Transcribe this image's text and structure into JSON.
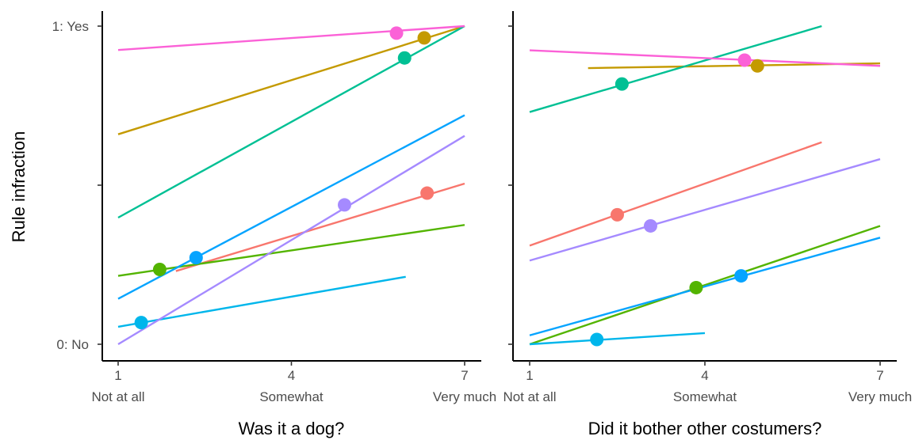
{
  "chart_data": [
    {
      "type": "line",
      "title": "",
      "xlabel": "Was it a dog?",
      "ylabel": "Rule infraction",
      "xlim": [
        1,
        7
      ],
      "ylim": [
        0,
        1
      ],
      "x_ticks": [
        1,
        4,
        7
      ],
      "x_tick_text": [
        "Not at all",
        "Somewhat",
        "Very much"
      ],
      "y_ticks": [
        0,
        0.5,
        1
      ],
      "y_tick_text": [
        "0: No",
        "",
        "1: Yes"
      ],
      "series": [
        {
          "color": "#F8766D",
          "line": {
            "x": [
              2.0,
              7.0
            ],
            "y": [
              0.23,
              0.505
            ]
          },
          "point": {
            "x": 6.35,
            "y": 0.475
          }
        },
        {
          "color": "#C49A00",
          "line": {
            "x": [
              1.0,
              7.0
            ],
            "y": [
              0.66,
              1.0
            ]
          },
          "point": {
            "x": 6.3,
            "y": 0.963
          }
        },
        {
          "color": "#53B400",
          "line": {
            "x": [
              1.0,
              7.0
            ],
            "y": [
              0.215,
              0.375
            ]
          },
          "point": {
            "x": 1.72,
            "y": 0.235
          }
        },
        {
          "color": "#00C094",
          "line": {
            "x": [
              1.0,
              7.0
            ],
            "y": [
              0.398,
              1.0
            ]
          },
          "point": {
            "x": 5.96,
            "y": 0.9
          }
        },
        {
          "color": "#00B6EB",
          "line": {
            "x": [
              1.0,
              5.98
            ],
            "y": [
              0.055,
              0.212
            ]
          },
          "point": {
            "x": 1.4,
            "y": 0.068
          }
        },
        {
          "color": "#06A4FF",
          "line": {
            "x": [
              1.0,
              7.0
            ],
            "y": [
              0.143,
              0.72
            ]
          },
          "point": {
            "x": 2.35,
            "y": 0.272
          }
        },
        {
          "color": "#A58AFF",
          "line": {
            "x": [
              1.0,
              7.0
            ],
            "y": [
              0.0,
              0.655
            ]
          },
          "point": {
            "x": 4.92,
            "y": 0.438
          }
        },
        {
          "color": "#FB61D7",
          "line": {
            "x": [
              1.0,
              7.0
            ],
            "y": [
              0.925,
              1.0
            ]
          },
          "point": {
            "x": 5.82,
            "y": 0.978
          }
        }
      ]
    },
    {
      "type": "line",
      "title": "",
      "xlabel": "Did it bother other costumers?",
      "ylabel": "",
      "xlim": [
        1,
        7
      ],
      "ylim": [
        0,
        1
      ],
      "x_ticks": [
        1,
        4,
        7
      ],
      "x_tick_text": [
        "Not at all",
        "Somewhat",
        "Very much"
      ],
      "y_ticks": [
        0,
        0.5,
        1
      ],
      "y_tick_text": [
        "",
        "",
        ""
      ],
      "series": [
        {
          "color": "#F8766D",
          "line": {
            "x": [
              1.0,
              6.0
            ],
            "y": [
              0.31,
              0.635
            ]
          },
          "point": {
            "x": 2.5,
            "y": 0.407
          }
        },
        {
          "color": "#C49A00",
          "line": {
            "x": [
              2.0,
              7.0
            ],
            "y": [
              0.868,
              0.883
            ]
          },
          "point": {
            "x": 4.9,
            "y": 0.875
          }
        },
        {
          "color": "#53B400",
          "line": {
            "x": [
              1.0,
              7.0
            ],
            "y": [
              0.0,
              0.372
            ]
          },
          "point": {
            "x": 3.85,
            "y": 0.178
          }
        },
        {
          "color": "#00C094",
          "line": {
            "x": [
              1.0,
              6.0
            ],
            "y": [
              0.73,
              1.0
            ]
          },
          "point": {
            "x": 2.58,
            "y": 0.818
          }
        },
        {
          "color": "#00B6EB",
          "line": {
            "x": [
              1.0,
              4.0
            ],
            "y": [
              0.0,
              0.035
            ]
          },
          "point": {
            "x": 2.15,
            "y": 0.015
          }
        },
        {
          "color": "#06A4FF",
          "line": {
            "x": [
              1.0,
              7.0
            ],
            "y": [
              0.028,
              0.335
            ]
          },
          "point": {
            "x": 4.62,
            "y": 0.215
          }
        },
        {
          "color": "#A58AFF",
          "line": {
            "x": [
              1.0,
              7.0
            ],
            "y": [
              0.263,
              0.582
            ]
          },
          "point": {
            "x": 3.07,
            "y": 0.372
          }
        },
        {
          "color": "#FB61D7",
          "line": {
            "x": [
              1.0,
              7.0
            ],
            "y": [
              0.924,
              0.875
            ]
          },
          "point": {
            "x": 4.68,
            "y": 0.893
          }
        }
      ]
    }
  ]
}
